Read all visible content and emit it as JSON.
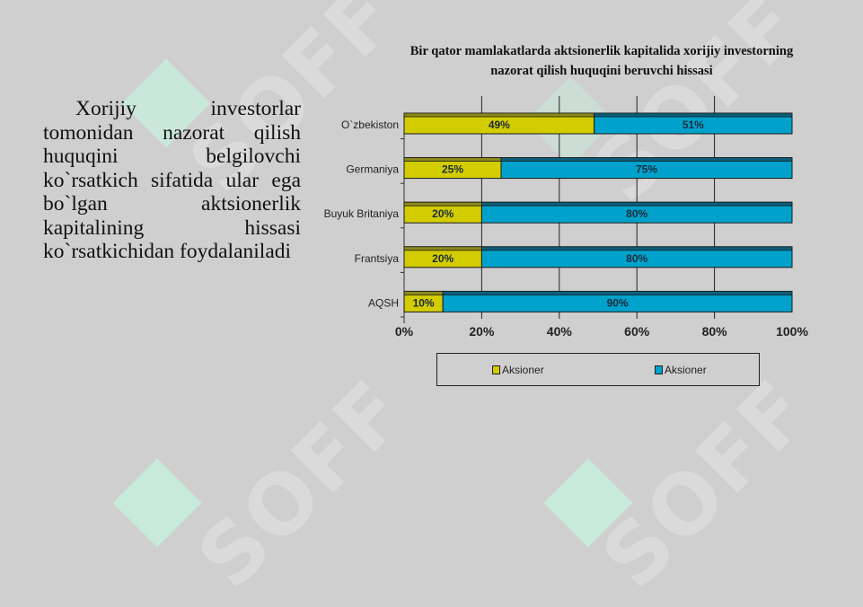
{
  "slide": {
    "body_text": "Xorijiy investorlar tomonidan nazorat qilish huquqini belgilovchi ko`rsatkich sifatida ular ega bo`lgan aktsionerlik kapitalining hissasi ko`rsatkichidan foydalaniladi",
    "watermark_text": "SOFF"
  },
  "colors": {
    "background": "#cfcfcf",
    "series1": "#d2cc00",
    "series1_top": "#8d8a1a",
    "series2": "#00a2cc",
    "series2_top": "#0a5f7d",
    "grid": "#222222"
  },
  "chart_data": {
    "type": "bar",
    "orientation": "horizontal",
    "stacked": true,
    "title": "Bir qator mamlakatlarda aktsionerlik kapitalida xorijiy investorning nazorat qilish huquqini beruvchi hissasi",
    "categories": [
      "O`zbekiston",
      "Germaniya",
      "Buyuk Britaniya",
      "Frantsiya",
      "AQSH"
    ],
    "series": [
      {
        "name": "Aksioner",
        "color": "#d2cc00",
        "values": [
          49,
          25,
          20,
          20,
          10
        ],
        "labels": [
          "49%",
          "25%",
          "20%",
          "20%",
          "10%"
        ]
      },
      {
        "name": "Aksioner",
        "color": "#00a2cc",
        "values": [
          51,
          75,
          80,
          80,
          90
        ],
        "labels": [
          "51%",
          "75%",
          "80%",
          "80%",
          "90%"
        ]
      }
    ],
    "xlim": [
      0,
      100
    ],
    "xticks": [
      "0%",
      "20%",
      "40%",
      "60%",
      "80%",
      "100%"
    ],
    "xlabel": "",
    "ylabel": "",
    "grid": "vertical",
    "legend_position": "bottom"
  }
}
